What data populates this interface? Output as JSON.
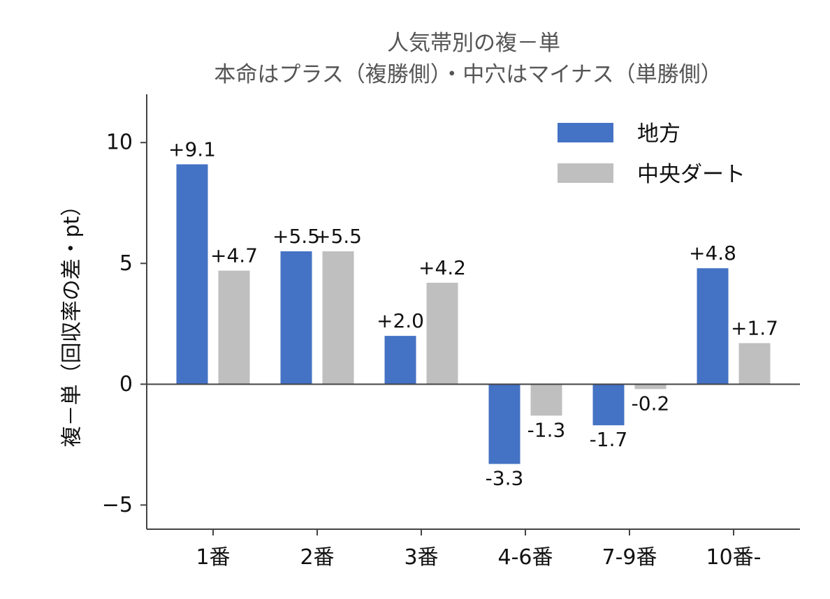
{
  "chart_data": {
    "type": "bar",
    "title": "人気帯別の複－単",
    "subtitle": "本命はプラス（複勝側）・中穴はマイナス（単勝側）",
    "ylabel": "複－単（回収率の差・pt）",
    "xlabel": "",
    "categories": [
      "1番",
      "2番",
      "3番",
      "4-6番",
      "7-9番",
      "10番-"
    ],
    "ylim": [
      -6,
      12
    ],
    "yticks": [
      -5,
      0,
      5,
      10
    ],
    "ytick_labels": [
      "−5",
      "0",
      "5",
      "10"
    ],
    "grid": false,
    "legend_position": "top-right",
    "series": [
      {
        "name": "地方",
        "color": "#4472c4",
        "values": [
          9.1,
          5.5,
          2.0,
          -3.3,
          -1.7,
          4.8
        ],
        "labels": [
          "+9.1",
          "+5.5",
          "+2.0",
          "-3.3",
          "-1.7",
          "+4.8"
        ]
      },
      {
        "name": "中央ダート",
        "color": "#bfbfbf",
        "values": [
          4.7,
          5.5,
          4.2,
          -1.3,
          -0.2,
          1.7
        ],
        "labels": [
          "+4.7",
          "+5.5",
          "+4.2",
          "-1.3",
          "-0.2",
          "+1.7"
        ]
      }
    ]
  }
}
